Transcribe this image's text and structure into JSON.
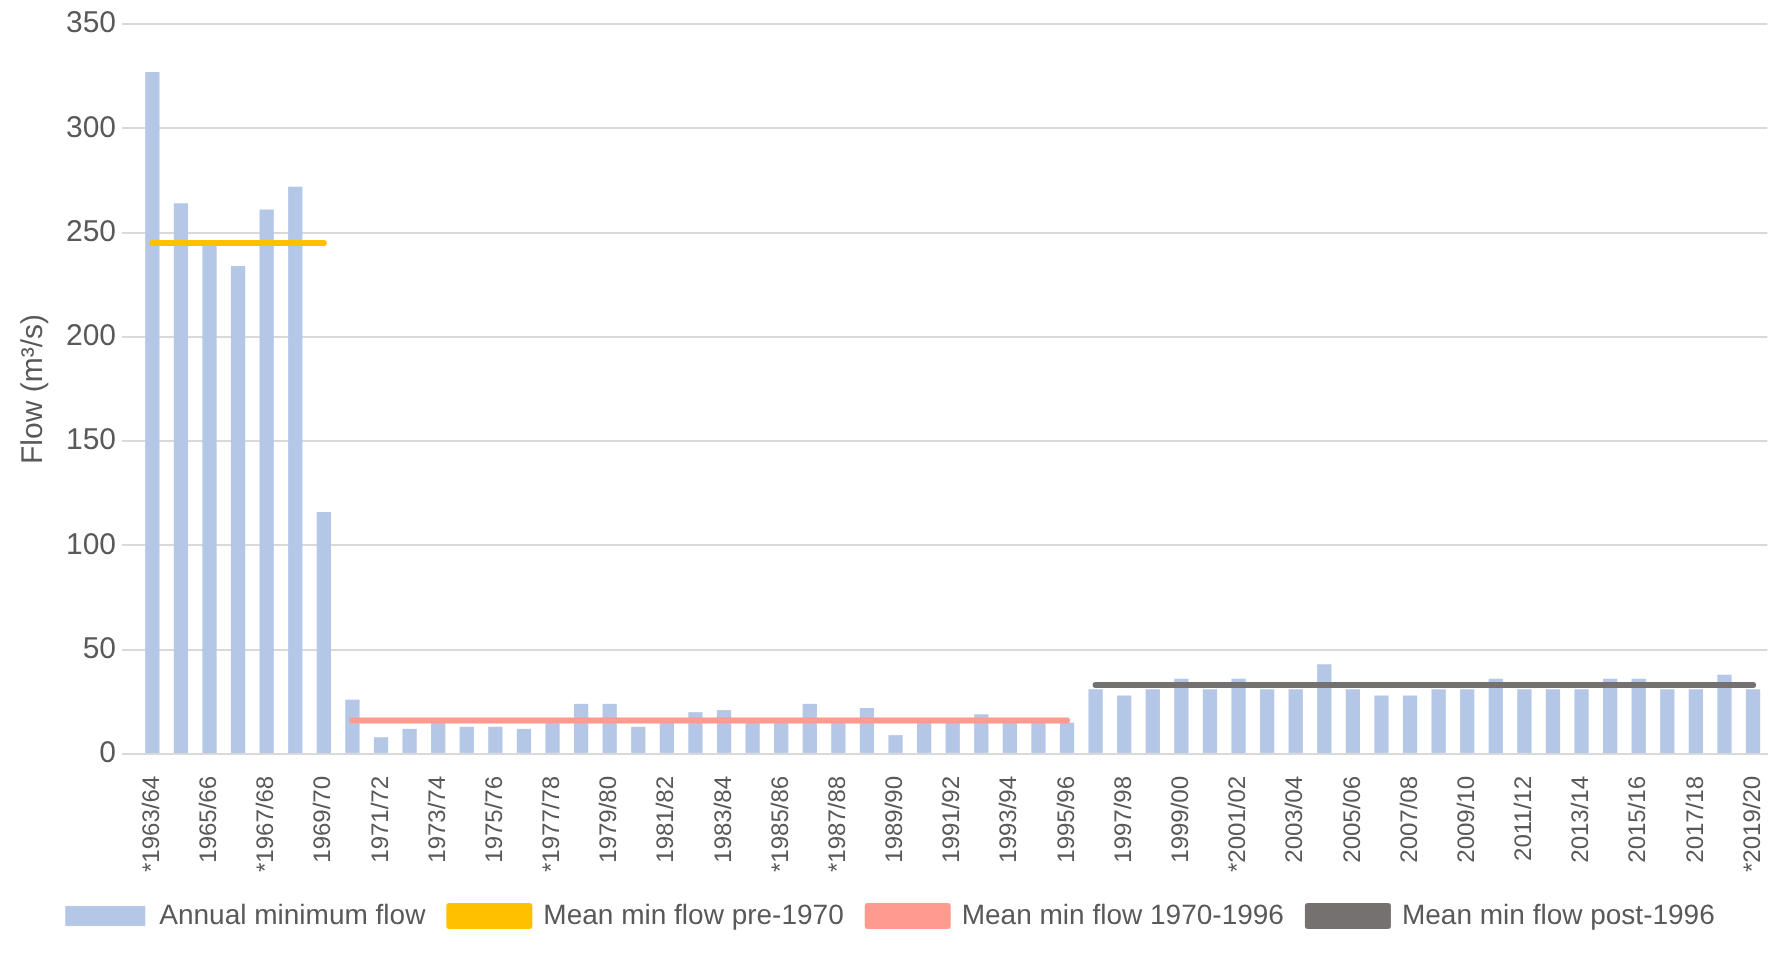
{
  "chart_data": {
    "type": "bar",
    "ylabel": "Flow (m³/s)",
    "categories": [
      "*1963/64",
      null,
      "1965/66",
      null,
      "*1967/68",
      null,
      "1969/70",
      null,
      "1971/72",
      null,
      "1973/74",
      null,
      "1975/76",
      null,
      "*1977/78",
      null,
      "1979/80",
      null,
      "1981/82",
      null,
      "1983/84",
      null,
      "*1985/86",
      null,
      "*1987/88",
      null,
      "1989/90",
      null,
      "1991/92",
      null,
      "1993/94",
      null,
      "1995/96",
      null,
      "1997/98",
      null,
      "1999/00",
      null,
      "*2001/02",
      null,
      "2003/04",
      null,
      "2005/06",
      null,
      "2007/08",
      null,
      "2009/10",
      null,
      "2011/12",
      null,
      "2013/14",
      null,
      "2015/16",
      null,
      "2017/18",
      null,
      "*2019/20"
    ],
    "series": [
      {
        "name": "Annual minimum flow",
        "color": "#b4c7e7",
        "values": [
          327,
          264,
          244,
          234,
          261,
          272,
          116,
          26,
          8,
          12,
          15,
          13,
          13,
          12,
          15,
          24,
          24,
          13,
          15,
          20,
          21,
          15,
          15,
          24,
          15,
          22,
          9,
          15,
          15,
          19,
          15,
          15,
          15,
          31,
          28,
          31,
          36,
          31,
          36,
          31,
          31,
          43,
          31,
          28,
          28,
          31,
          31,
          36,
          31,
          31,
          31,
          36,
          36,
          31,
          31,
          38,
          31
        ]
      },
      {
        "name": "Mean min flow pre-1970",
        "type": "line",
        "color": "#ffc000",
        "values": [
          245,
          245,
          245,
          245,
          245,
          245,
          245,
          null,
          null,
          null,
          null,
          null,
          null,
          null,
          null,
          null,
          null,
          null,
          null,
          null,
          null,
          null,
          null,
          null,
          null,
          null,
          null,
          null,
          null,
          null,
          null,
          null,
          null,
          null,
          null,
          null,
          null,
          null,
          null,
          null,
          null,
          null,
          null,
          null,
          null,
          null,
          null,
          null,
          null,
          null,
          null,
          null,
          null,
          null,
          null,
          null,
          null
        ]
      },
      {
        "name": "Mean min flow 1970-1996",
        "type": "line",
        "color": "#ff9a8f",
        "values": [
          null,
          null,
          null,
          null,
          null,
          null,
          null,
          16,
          16,
          16,
          16,
          16,
          16,
          16,
          16,
          16,
          16,
          16,
          16,
          16,
          16,
          16,
          16,
          16,
          16,
          16,
          16,
          16,
          16,
          16,
          16,
          16,
          16,
          null,
          null,
          null,
          null,
          null,
          null,
          null,
          null,
          null,
          null,
          null,
          null,
          null,
          null,
          null,
          null,
          null,
          null,
          null,
          null,
          null,
          null,
          null,
          null
        ]
      },
      {
        "name": "Mean min flow post-1996",
        "type": "line",
        "color": "#767171",
        "values": [
          null,
          null,
          null,
          null,
          null,
          null,
          null,
          null,
          null,
          null,
          null,
          null,
          null,
          null,
          null,
          null,
          null,
          null,
          null,
          null,
          null,
          null,
          null,
          null,
          null,
          null,
          null,
          null,
          null,
          null,
          null,
          null,
          null,
          33,
          33,
          33,
          33,
          33,
          33,
          33,
          33,
          33,
          33,
          33,
          33,
          33,
          33,
          33,
          33,
          33,
          33,
          33,
          33,
          33,
          33,
          33,
          33
        ]
      }
    ],
    "ylim": [
      0,
      350
    ],
    "yticks": [
      0,
      50,
      100,
      150,
      200,
      250,
      300,
      350
    ],
    "grid": "y",
    "legend": "bottom",
    "marker": "none"
  }
}
